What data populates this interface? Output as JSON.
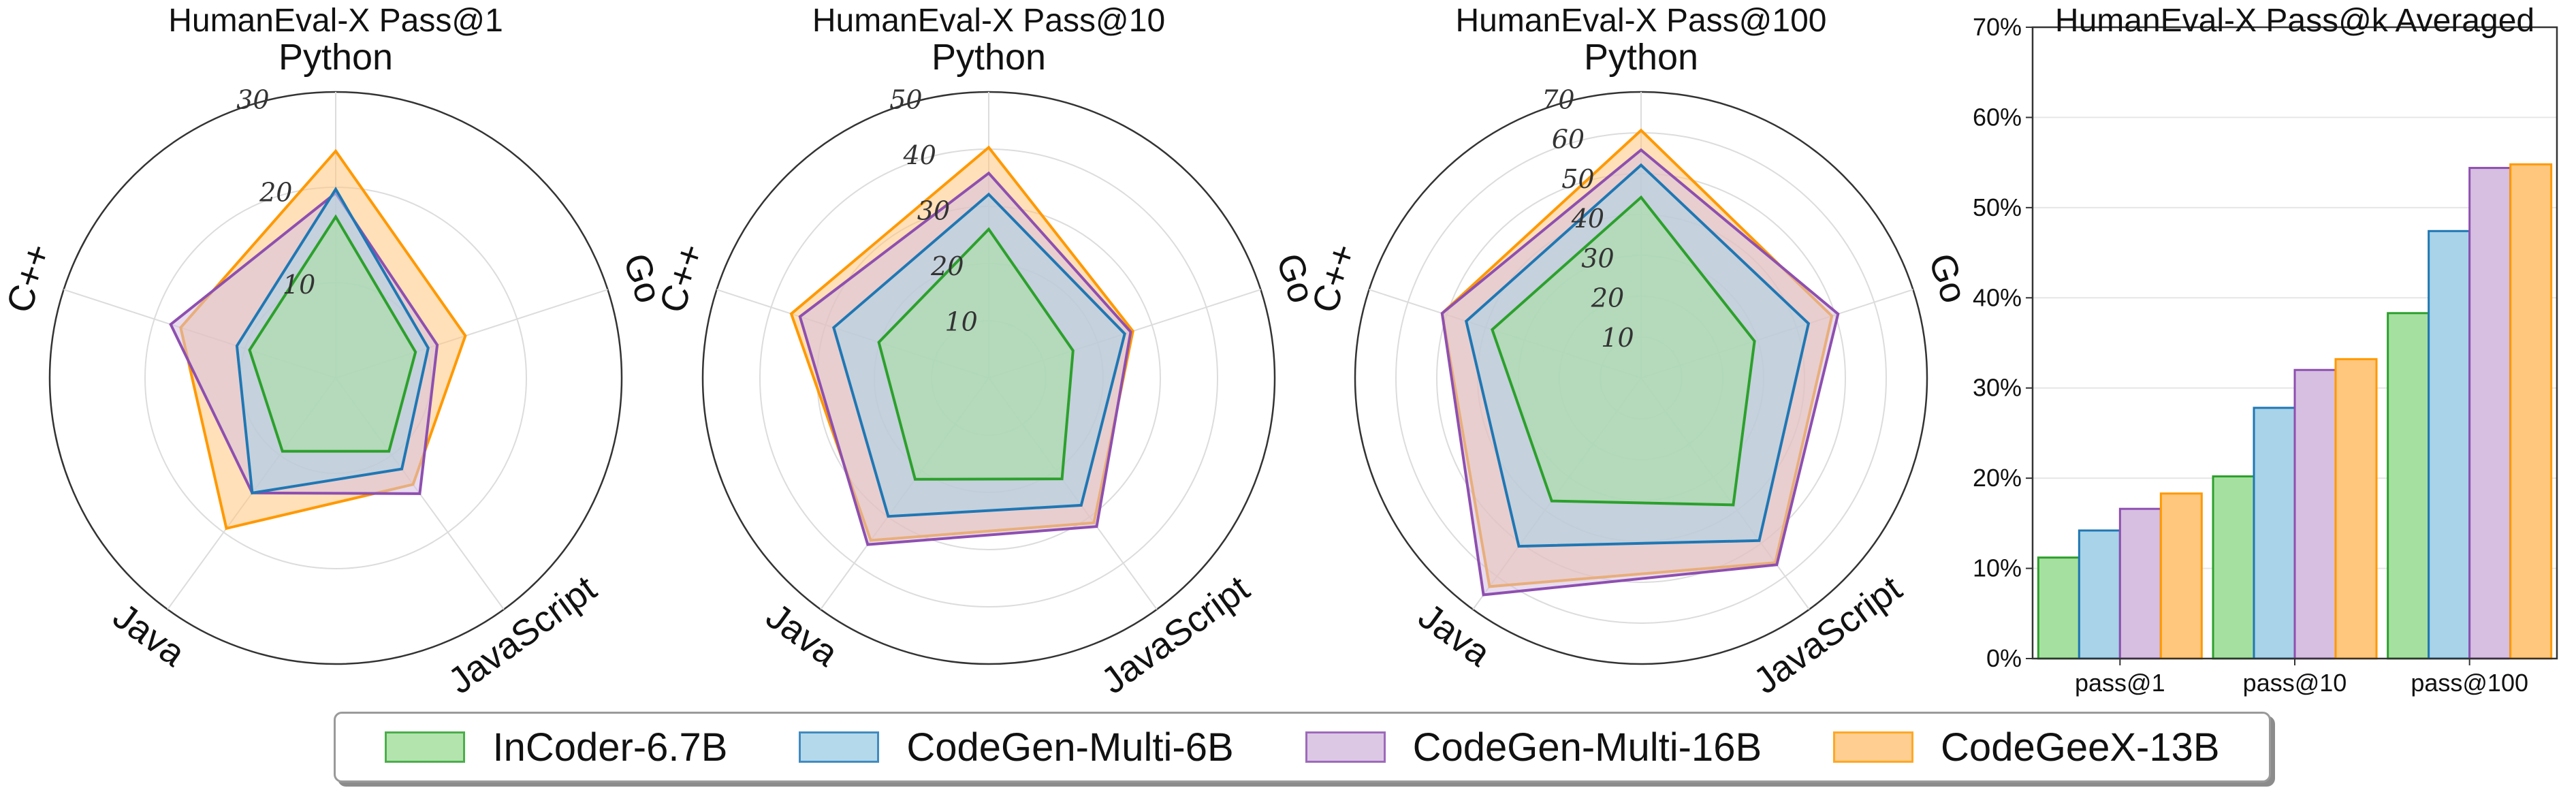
{
  "chart_data": [
    {
      "type": "radar",
      "title": "HumanEval-X Pass@1",
      "axes": [
        "Python",
        "Go",
        "JavaScript",
        "Java",
        "C++"
      ],
      "rlim": [
        0,
        30
      ],
      "rticks": [
        10,
        20,
        30
      ],
      "series": [
        {
          "name": "InCoder-6.7B",
          "values": [
            16.9,
            8.8,
            9.5,
            9.5,
            9.5
          ]
        },
        {
          "name": "CodeGen-Multi-6B",
          "values": [
            19.8,
            10.2,
            11.8,
            14.9,
            10.9
          ]
        },
        {
          "name": "CodeGen-Multi-16B",
          "values": [
            19.4,
            11.2,
            15.0,
            14.9,
            18.2
          ]
        },
        {
          "name": "CodeGeeX-13B",
          "values": [
            23.8,
            14.3,
            13.8,
            19.5,
            17.1
          ]
        }
      ]
    },
    {
      "type": "radar",
      "title": "HumanEval-X Pass@10",
      "axes": [
        "Python",
        "Go",
        "JavaScript",
        "Java",
        "C++"
      ],
      "rlim": [
        0,
        50
      ],
      "rticks": [
        10,
        20,
        30,
        40,
        50
      ],
      "series": [
        {
          "name": "InCoder-6.7B",
          "values": [
            26.0,
            15.5,
            21.8,
            21.9,
            20.2
          ]
        },
        {
          "name": "CodeGen-Multi-6B",
          "values": [
            32.1,
            25.0,
            27.5,
            29.9,
            28.5
          ]
        },
        {
          "name": "CodeGen-Multi-16B",
          "values": [
            35.8,
            26.1,
            32.1,
            36.0,
            34.7
          ]
        },
        {
          "name": "CodeGeeX-13B",
          "values": [
            40.3,
            26.5,
            31.3,
            35.1,
            36.3
          ]
        }
      ]
    },
    {
      "type": "radar",
      "title": "HumanEval-X Pass@100",
      "axes": [
        "Python",
        "Go",
        "JavaScript",
        "Java",
        "C++"
      ],
      "rlim": [
        0,
        70
      ],
      "rticks": [
        10,
        20,
        30,
        40,
        50,
        60,
        70
      ],
      "series": [
        {
          "name": "InCoder-6.7B",
          "values": [
            44.2,
            29.2,
            38.4,
            37.2,
            38.3
          ]
        },
        {
          "name": "CodeGen-Multi-6B",
          "values": [
            52.1,
            43.1,
            49.2,
            50.9,
            45.0
          ]
        },
        {
          "name": "CodeGen-Multi-16B",
          "values": [
            55.8,
            50.7,
            56.5,
            65.6,
            51.2
          ]
        },
        {
          "name": "CodeGeeX-13B",
          "values": [
            60.6,
            49.1,
            55.9,
            63.1,
            51.2
          ]
        }
      ]
    },
    {
      "type": "bar",
      "title": "HumanEval-X Pass@k Averaged",
      "categories": [
        "pass@1",
        "pass@10",
        "pass@100"
      ],
      "ylim": [
        0,
        70
      ],
      "yticks": [
        "0%",
        "10%",
        "20%",
        "30%",
        "40%",
        "50%",
        "60%",
        "70%"
      ],
      "series": [
        {
          "name": "InCoder-6.7B",
          "values": [
            11.2,
            20.2,
            38.3
          ]
        },
        {
          "name": "CodeGen-Multi-6B",
          "values": [
            14.2,
            27.8,
            47.4
          ]
        },
        {
          "name": "CodeGen-Multi-16B",
          "values": [
            16.6,
            32.0,
            54.4
          ]
        },
        {
          "name": "CodeGeeX-13B",
          "values": [
            18.3,
            33.2,
            54.8
          ]
        }
      ]
    }
  ],
  "legend": [
    {
      "name": "InCoder-6.7B",
      "fill": "#a6e0a0",
      "line": "#2ca02c"
    },
    {
      "name": "CodeGen-Multi-6B",
      "fill": "#a8d3e8",
      "line": "#1f77b4"
    },
    {
      "name": "CodeGen-Multi-16B",
      "fill": "#d6bfe0",
      "line": "#8e4fb0"
    },
    {
      "name": "CodeGeeX-13B",
      "fill": "#ffc67d",
      "line": "#ff9900"
    }
  ]
}
